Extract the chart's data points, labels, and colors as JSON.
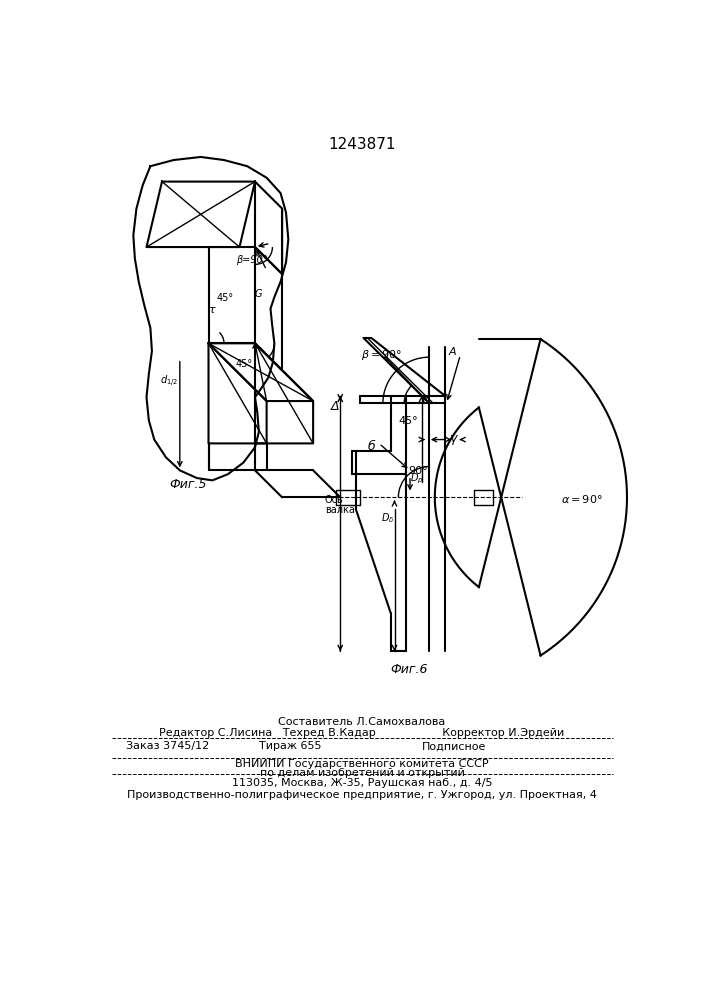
{
  "title": "1243871",
  "fig5_label": "Фиг.5",
  "fig6_label": "Фиг.6",
  "bg_color": "#ffffff",
  "line_color": "#000000",
  "footer_line1": "Составитель Л.Самохвалова",
  "footer_line2": "Редактор С.Лисина   Техред В.Кадар                   Корректор И.Эрдейи",
  "footer_line3a": "Заказ 3745/12",
  "footer_line3b": "Тираж 655",
  "footer_line3c": "Подписное",
  "footer_line4": "ВНИИПИ Государственного комитета СССР",
  "footer_line5": "по делам изобретений и открытий",
  "footer_line6": "113035, Москва, Ж-35, Раушская наб., д. 4/5",
  "footer_line7": "Производственно-полиграфическое предприятие, г. Ужгород, ул. Проектная, 4"
}
